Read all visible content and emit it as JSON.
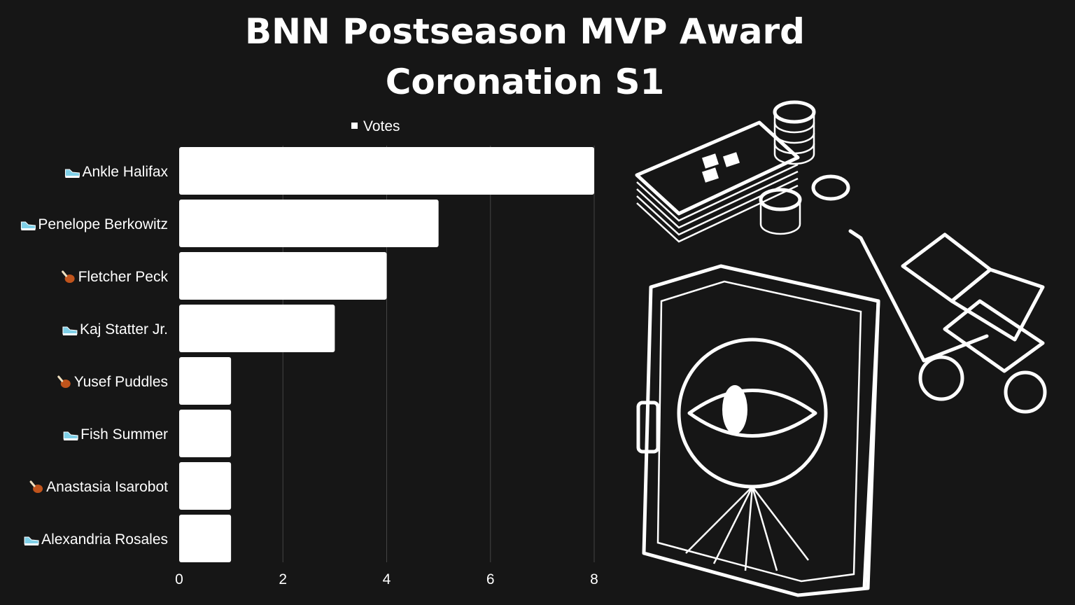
{
  "title_line1": "BNN Postseason MVP Award",
  "title_line2": "Coronation S1",
  "chart_data": {
    "type": "bar",
    "orientation": "horizontal",
    "categories": [
      "Ankle Halifax",
      "Penelope Berkowitz",
      "Fletcher Peck",
      "Kaj Statter Jr.",
      "Yusef Puddles",
      "Fish Summer",
      "Anastasia Isarobot",
      "Alexandria Rosales"
    ],
    "category_icons": [
      "sneaker-icon",
      "sneaker-icon",
      "drumstick-icon",
      "sneaker-icon",
      "drumstick-icon",
      "sneaker-icon",
      "drumstick-icon",
      "sneaker-icon"
    ],
    "series": [
      {
        "name": "Votes",
        "values": [
          8,
          5,
          4,
          3,
          1,
          1,
          1,
          1
        ]
      }
    ],
    "xlim": [
      0,
      8
    ],
    "xticks": [
      0,
      2,
      4,
      6,
      8
    ],
    "grid": true,
    "legend_position": "top",
    "colors": {
      "background": "#161616",
      "bar": "#ffffff",
      "grid": "#444444",
      "text": "#ffffff"
    }
  }
}
